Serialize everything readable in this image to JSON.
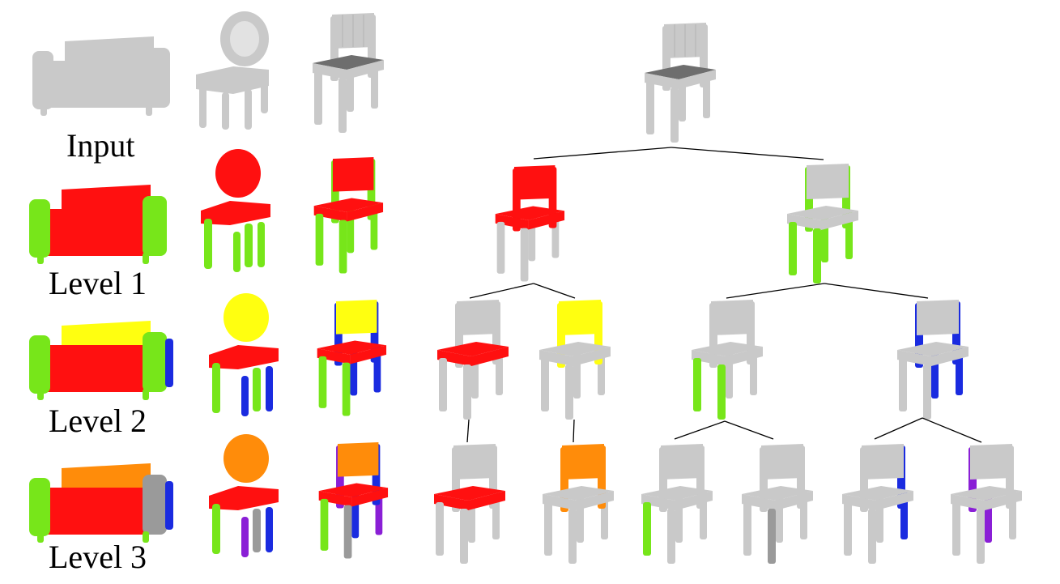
{
  "labels": {
    "input": "Input",
    "level1": "Level 1",
    "level2": "Level 2",
    "level3": "Level 3"
  },
  "colors": {
    "gray": "#c9c9c9",
    "gray_dark": "#a6a6a6",
    "gray_seat_top": "#6e6e6e",
    "red": "#ff1010",
    "green": "#77e61a",
    "yellow": "#ffff10",
    "blue": "#1a2be0",
    "orange": "#ff8c0a",
    "purple": "#8a1fd6",
    "segment_gray": "#9a9a9a",
    "edge": "#000000"
  }
}
